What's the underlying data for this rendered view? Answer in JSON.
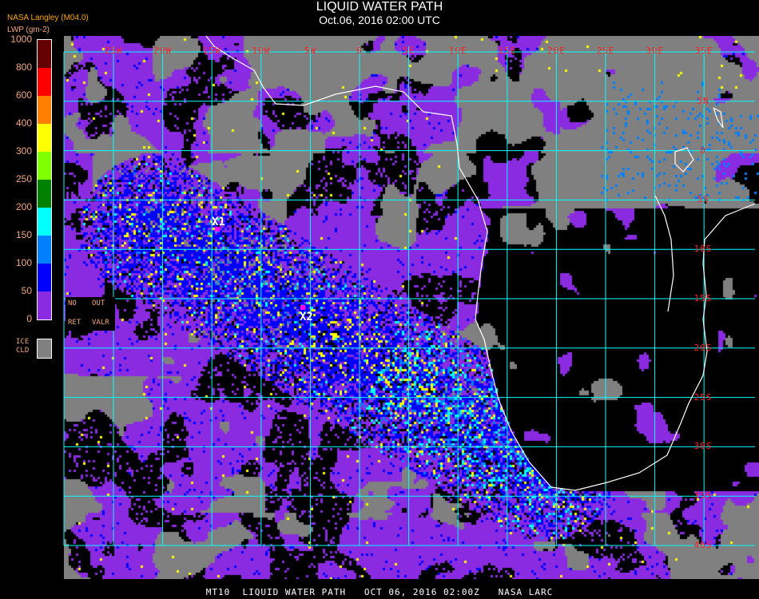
{
  "header": {
    "title": "LIQUID WATER PATH",
    "subtitle": "Oct.06, 2016 02:00 UTC",
    "producer": "NASA Langley (M04.0)",
    "units": "LWP (gm-2)"
  },
  "legend": {
    "ticks": [
      "1000",
      "800",
      "600",
      "400",
      "300",
      "250",
      "200",
      "150",
      "100",
      "50",
      "0"
    ],
    "colors": [
      "#640000",
      "#ff0000",
      "#ff8000",
      "#ffff00",
      "#80ff00",
      "#008000",
      "#00ffff",
      "#0080ff",
      "#0000ff",
      "#8a2be2"
    ],
    "no_retrieval": {
      "line1a": "NO",
      "line1b": "OUT",
      "line2a": "RET",
      "line2b": "VALR"
    },
    "ice_cloud": {
      "line1": "ICE",
      "line2": "CLD",
      "color": "#808080"
    }
  },
  "map": {
    "longitude_labels": [
      "25W",
      "20W",
      "15W",
      "10W",
      "5W",
      "0",
      "5E",
      "10E",
      "15E",
      "20E",
      "25E",
      "30E",
      "35E"
    ],
    "latitude_labels": [
      "5N",
      "0",
      "5S",
      "10S",
      "15S",
      "20S",
      "25S",
      "30S",
      "35S",
      "40S"
    ],
    "grid_color": "#00ffff",
    "label_color": "#ff2020",
    "coastline_color": "#ffffff",
    "markers": [
      {
        "label": "X1",
        "color": "#ff00ff"
      },
      {
        "label": "X2",
        "color": "#ff00ff"
      }
    ]
  },
  "footer": {
    "text": "MT10  LIQUID WATER PATH   OCT 06, 2016 02:00Z   NASA LARC"
  }
}
